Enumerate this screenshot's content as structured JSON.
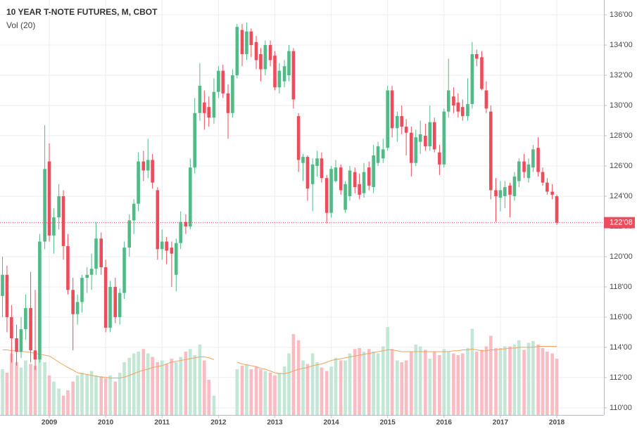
{
  "chart_data": {
    "type": "candlestick",
    "title": "10 YEAR T-NOTE FUTURES, M, CBOT",
    "subtitle": "Vol (20)",
    "up_color": "#53b987",
    "down_color": "#eb4d5c",
    "volume_up_color": "#c3e6d5",
    "volume_down_color": "#f8bcc3",
    "ma_color": "#f0a35e",
    "grid": true,
    "x": [
      2008.17,
      2008.25,
      2008.33,
      2008.42,
      2008.5,
      2008.58,
      2008.67,
      2008.75,
      2008.83,
      2008.92,
      2009,
      2009.08,
      2009.17,
      2009.25,
      2009.33,
      2009.42,
      2009.5,
      2009.58,
      2009.67,
      2009.75,
      2009.83,
      2009.92,
      2010,
      2010.08,
      2010.17,
      2010.25,
      2010.33,
      2010.42,
      2010.5,
      2010.58,
      2010.67,
      2010.75,
      2010.83,
      2010.92,
      2011,
      2011.08,
      2011.17,
      2011.25,
      2011.33,
      2011.42,
      2011.5,
      2011.58,
      2011.67,
      2011.75,
      2011.83,
      2011.92,
      2012,
      2012.08,
      2012.17,
      2012.25,
      2012.33,
      2012.42,
      2012.5,
      2012.58,
      2012.67,
      2012.75,
      2012.83,
      2012.92,
      2013,
      2013.08,
      2013.17,
      2013.25,
      2013.33,
      2013.42,
      2013.5,
      2013.58,
      2013.67,
      2013.75,
      2013.83,
      2013.92,
      2014,
      2014.08,
      2014.17,
      2014.25,
      2014.33,
      2014.42,
      2014.5,
      2014.58,
      2014.67,
      2014.75,
      2014.83,
      2014.92,
      2015,
      2015.08,
      2015.17,
      2015.25,
      2015.33,
      2015.42,
      2015.5,
      2015.58,
      2015.67,
      2015.75,
      2015.83,
      2015.92,
      2016,
      2016.08,
      2016.17,
      2016.25,
      2016.33,
      2016.42,
      2016.5,
      2016.58,
      2016.67,
      2016.75,
      2016.83,
      2016.92,
      2017,
      2017.08,
      2017.17,
      2017.25,
      2017.33,
      2017.42,
      2017.5,
      2017.58,
      2017.67,
      2017.75,
      2017.83,
      2017.92,
      2018
    ],
    "ohlc": [
      [
        117.4,
        120.0,
        116.0,
        118.8
      ],
      [
        118.8,
        119.4,
        115.0,
        116.0
      ],
      [
        116.0,
        116.8,
        113.0,
        114.6
      ],
      [
        114.6,
        115.5,
        112.8,
        113.7
      ],
      [
        113.7,
        116.0,
        113.3,
        115.2
      ],
      [
        115.2,
        117.5,
        114.5,
        116.6
      ],
      [
        116.6,
        119.0,
        113.0,
        113.8
      ],
      [
        113.8,
        117.8,
        112.5,
        113.2
      ],
      [
        113.2,
        121.5,
        113.0,
        121.0
      ],
      [
        121.0,
        128.7,
        120.5,
        125.8
      ],
      [
        126.3,
        127.5,
        121.0,
        121.4
      ],
      [
        121.4,
        123.2,
        120.2,
        122.6
      ],
      [
        122.6,
        124.8,
        121.8,
        124.0
      ],
      [
        124.0,
        124.4,
        119.8,
        120.7
      ],
      [
        120.7,
        121.5,
        117.5,
        117.8
      ],
      [
        117.8,
        118.6,
        113.8,
        116.2
      ],
      [
        116.2,
        117.5,
        115.5,
        117.0
      ],
      [
        117.0,
        118.8,
        116.3,
        118.6
      ],
      [
        118.6,
        119.3,
        117.6,
        118.8
      ],
      [
        118.8,
        120.2,
        117.8,
        119.2
      ],
      [
        119.2,
        122.3,
        118.8,
        121.2
      ],
      [
        121.2,
        121.6,
        118.8,
        119.3
      ],
      [
        119.3,
        119.8,
        115.0,
        115.3
      ],
      [
        115.3,
        118.4,
        115.0,
        118.0
      ],
      [
        118.0,
        118.6,
        115.6,
        116.0
      ],
      [
        116.0,
        117.9,
        115.5,
        117.6
      ],
      [
        117.6,
        121.0,
        117.2,
        120.6
      ],
      [
        120.6,
        122.8,
        120.0,
        122.4
      ],
      [
        122.4,
        123.8,
        121.5,
        123.5
      ],
      [
        123.5,
        126.9,
        123.0,
        126.3
      ],
      [
        126.3,
        127.0,
        125.0,
        125.7
      ],
      [
        125.7,
        127.8,
        125.2,
        126.4
      ],
      [
        126.4,
        126.8,
        124.5,
        124.9
      ],
      [
        124.4,
        124.6,
        119.8,
        120.5
      ],
      [
        120.5,
        121.8,
        119.8,
        121.0
      ],
      [
        121.0,
        121.3,
        119.5,
        120.4
      ],
      [
        120.6,
        121.0,
        118.0,
        120.2
      ],
      [
        118.8,
        121.2,
        117.7,
        120.9
      ],
      [
        120.9,
        123.0,
        120.5,
        122.3
      ],
      [
        122.3,
        122.8,
        121.5,
        122.0
      ],
      [
        122.0,
        126.5,
        121.8,
        125.9
      ],
      [
        125.9,
        130.5,
        125.5,
        129.5
      ],
      [
        129.5,
        132.8,
        129.0,
        131.3
      ],
      [
        130.2,
        131.0,
        128.4,
        129.5
      ],
      [
        129.9,
        130.6,
        128.6,
        129.2
      ],
      [
        129.2,
        131.8,
        128.8,
        130.9
      ],
      [
        130.9,
        132.6,
        130.5,
        132.3
      ],
      [
        132.3,
        132.7,
        130.5,
        130.8
      ],
      [
        130.8,
        131.4,
        127.8,
        129.5
      ],
      [
        129.5,
        132.4,
        129.2,
        132.0
      ],
      [
        132.0,
        135.4,
        131.8,
        135.2
      ],
      [
        135.0,
        135.4,
        132.6,
        133.4
      ],
      [
        133.4,
        135.5,
        133.0,
        134.9
      ],
      [
        134.9,
        135.1,
        133.2,
        134.0
      ],
      [
        134.2,
        134.6,
        132.4,
        133.0
      ],
      [
        133.4,
        133.8,
        131.6,
        132.4
      ],
      [
        132.4,
        134.3,
        132.0,
        134.0
      ],
      [
        134.0,
        134.3,
        132.6,
        133.0
      ],
      [
        133.3,
        133.6,
        131.0,
        131.2
      ],
      [
        131.2,
        132.8,
        130.8,
        132.3
      ],
      [
        131.6,
        133.0,
        131.2,
        132.6
      ],
      [
        132.0,
        134.0,
        131.6,
        133.6
      ],
      [
        133.6,
        133.8,
        129.8,
        130.4
      ],
      [
        129.3,
        129.5,
        125.6,
        126.4
      ],
      [
        126.2,
        126.8,
        125.0,
        126.6
      ],
      [
        126.6,
        126.7,
        123.7,
        124.5
      ],
      [
        124.8,
        126.5,
        123.0,
        126.1
      ],
      [
        126.0,
        127.0,
        125.3,
        126.5
      ],
      [
        126.5,
        126.9,
        124.9,
        125.2
      ],
      [
        125.2,
        125.4,
        122.2,
        122.9
      ],
      [
        122.9,
        126.0,
        122.6,
        125.8
      ],
      [
        125.0,
        126.4,
        124.9,
        125.9
      ],
      [
        125.9,
        126.1,
        124.1,
        124.4
      ],
      [
        123.1,
        125.0,
        122.9,
        124.8
      ],
      [
        124.0,
        126.0,
        123.7,
        125.7
      ],
      [
        125.6,
        125.9,
        124.2,
        124.6
      ],
      [
        124.8,
        125.5,
        123.8,
        124.1
      ],
      [
        124.2,
        126.2,
        123.9,
        125.6
      ],
      [
        125.9,
        126.3,
        124.4,
        124.7
      ],
      [
        124.6,
        127.4,
        124.2,
        126.7
      ],
      [
        126.2,
        127.6,
        126.0,
        127.3
      ],
      [
        126.5,
        127.8,
        126.2,
        127.1
      ],
      [
        127.2,
        131.3,
        127.0,
        131.0
      ],
      [
        131.0,
        131.3,
        127.9,
        128.5
      ],
      [
        128.5,
        129.6,
        127.6,
        129.3
      ],
      [
        129.3,
        130.0,
        128.1,
        128.6
      ],
      [
        128.6,
        129.1,
        126.7,
        128.2
      ],
      [
        128.2,
        128.6,
        125.3,
        126.2
      ],
      [
        126.2,
        128.4,
        126.0,
        127.9
      ],
      [
        127.6,
        129.0,
        126.8,
        128.1
      ],
      [
        128.0,
        128.8,
        127.0,
        127.3
      ],
      [
        127.3,
        130.0,
        127.0,
        128.9
      ],
      [
        128.9,
        129.2,
        126.9,
        127.1
      ],
      [
        126.9,
        127.4,
        125.4,
        126.1
      ],
      [
        126.1,
        129.8,
        125.9,
        129.6
      ],
      [
        129.6,
        133.1,
        129.2,
        131.0
      ],
      [
        130.6,
        131.2,
        129.5,
        130.0
      ],
      [
        130.2,
        130.8,
        129.2,
        129.6
      ],
      [
        129.9,
        130.4,
        129.0,
        129.3
      ],
      [
        129.3,
        131.8,
        129.0,
        130.1
      ],
      [
        130.1,
        134.2,
        129.8,
        133.4
      ],
      [
        133.4,
        133.7,
        132.6,
        133.1
      ],
      [
        133.2,
        133.6,
        131.0,
        131.1
      ],
      [
        131.0,
        131.6,
        129.5,
        129.8
      ],
      [
        129.6,
        130.0,
        123.8,
        124.4
      ],
      [
        124.4,
        125.2,
        122.3,
        124.0
      ],
      [
        123.9,
        125.0,
        123.0,
        124.4
      ],
      [
        124.0,
        125.0,
        123.2,
        124.6
      ],
      [
        124.7,
        124.9,
        122.6,
        124.1
      ],
      [
        124.0,
        125.6,
        123.7,
        125.3
      ],
      [
        125.0,
        126.5,
        124.6,
        126.3
      ],
      [
        126.3,
        126.8,
        125.2,
        125.6
      ],
      [
        125.2,
        126.5,
        124.9,
        126.1
      ],
      [
        125.9,
        127.4,
        125.6,
        127.1
      ],
      [
        127.2,
        127.9,
        125.3,
        125.6
      ],
      [
        125.6,
        125.9,
        124.7,
        124.9
      ],
      [
        124.9,
        125.2,
        124.1,
        124.3
      ],
      [
        124.3,
        124.8,
        123.8,
        124.1
      ],
      [
        124.0,
        124.1,
        122.1,
        122.25
      ]
    ],
    "volume": [
      52,
      48,
      70,
      60,
      54,
      62,
      58,
      56,
      66,
      60,
      45,
      38,
      30,
      22,
      28,
      38,
      45,
      48,
      46,
      50,
      45,
      44,
      42,
      45,
      38,
      48,
      60,
      65,
      70,
      72,
      75,
      70,
      66,
      60,
      62,
      58,
      64,
      60,
      66,
      72,
      75,
      68,
      80,
      62,
      40,
      22,
      null,
      null,
      null,
      null,
      52,
      56,
      58,
      52,
      55,
      52,
      50,
      48,
      45,
      48,
      55,
      70,
      92,
      85,
      62,
      58,
      70,
      60,
      54,
      50,
      55,
      65,
      62,
      62,
      70,
      75,
      76,
      72,
      75,
      72,
      70,
      78,
      100,
      75,
      62,
      60,
      62,
      72,
      80,
      78,
      74,
      64,
      72,
      68,
      75,
      72,
      70,
      68,
      70,
      76,
      98,
      72,
      74,
      78,
      90,
      76,
      76,
      78,
      78,
      80,
      85,
      74,
      82,
      84,
      80,
      76,
      72,
      70,
      64
    ],
    "volume_ma": [
      74,
      74,
      73,
      73,
      72,
      72,
      71,
      70,
      69,
      68,
      67,
      64,
      60,
      57,
      54,
      51,
      48,
      47,
      46,
      45,
      44,
      43,
      43,
      42,
      42,
      42,
      43,
      45,
      47,
      49,
      51,
      52,
      54,
      55,
      56,
      58,
      60,
      61,
      62,
      63,
      64,
      65,
      66,
      66,
      65,
      63,
      null,
      null,
      null,
      null,
      60,
      58,
      57,
      56,
      55,
      53,
      52,
      50,
      48,
      47,
      47,
      48,
      50,
      52,
      53,
      54,
      56,
      57,
      58,
      60,
      62,
      63,
      64,
      65,
      66,
      67,
      68,
      69,
      70,
      71,
      72,
      73,
      74,
      74,
      73,
      72,
      72,
      72,
      72,
      72,
      72,
      72,
      72,
      72,
      72,
      72,
      73,
      73,
      74,
      74,
      75,
      74,
      73,
      73,
      74,
      74,
      75,
      75,
      76,
      76,
      77,
      77,
      77,
      77,
      78,
      78,
      78,
      78,
      78
    ],
    "xlim": [
      2008.126,
      2018.836
    ],
    "xticks": [
      2009,
      2010,
      2011,
      2012,
      2013,
      2014,
      2015,
      2016,
      2017,
      2018
    ],
    "ylim": [
      109.53,
      136.98
    ],
    "yticks": [
      {
        "value": 110,
        "label": "110'00"
      },
      {
        "value": 112,
        "label": "112'00"
      },
      {
        "value": 114,
        "label": "114'00"
      },
      {
        "value": 116,
        "label": "116'00"
      },
      {
        "value": 118,
        "label": "118'00"
      },
      {
        "value": 120,
        "label": "120'00"
      },
      {
        "value": 122,
        "label": "122'00"
      },
      {
        "value": 124,
        "label": "124'00"
      },
      {
        "value": 126,
        "label": "126'00"
      },
      {
        "value": 128,
        "label": "128'00"
      },
      {
        "value": 130,
        "label": "130'00"
      },
      {
        "value": 132,
        "label": "132'00"
      },
      {
        "value": 134,
        "label": "134'00"
      },
      {
        "value": 136,
        "label": "136'00"
      }
    ],
    "volume_lim": [
      0,
      130
    ],
    "last_price": {
      "value": 122.25,
      "label": "122'08"
    }
  }
}
